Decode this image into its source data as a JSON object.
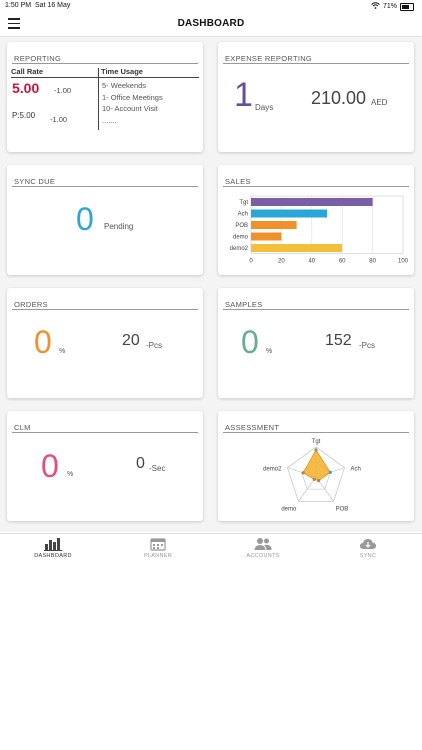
{
  "status_bar": {
    "time": "1:50 PM",
    "date": "Sat 16 May",
    "battery": "71%",
    "battery_level": 0.71
  },
  "header": {
    "title": "DASHBOARD"
  },
  "reporting": {
    "title": "REPORTING",
    "col_call_rate": "Call Rate",
    "col_time_usage": "Time Usage",
    "call_rate_value": "5.00",
    "call_rate_delta": "-1.00",
    "p_value": "P:5.00",
    "p_delta": "-1.00",
    "time_usage_items": [
      "5- Weekends",
      "1- Office Meetings",
      "10- Account Visit",
      "......."
    ]
  },
  "expense": {
    "title": "EXPENSE REPORTING",
    "days_value": "1",
    "days_label": "Days",
    "amount": "210.00",
    "currency": "AED"
  },
  "sync_due": {
    "title": "SYNC DUE",
    "value": "0",
    "label": "Pending"
  },
  "sales": {
    "title": "SALES"
  },
  "orders": {
    "title": "ORDERS",
    "percent": "0",
    "percent_sign": "%",
    "qty": "20",
    "qty_unit": "-Pcs"
  },
  "samples": {
    "title": "SAMPLES",
    "percent": "0",
    "percent_sign": "%",
    "qty": "152",
    "qty_unit": "-Pcs"
  },
  "clm": {
    "title": "CLM",
    "percent": "0",
    "percent_sign": "%",
    "seconds": "0",
    "seconds_unit": "-Sec"
  },
  "assessment": {
    "title": "ASSESSMENT"
  },
  "chart_data": [
    {
      "type": "bar",
      "orientation": "horizontal",
      "categories": [
        "Tgt",
        "Ach",
        "POB",
        "demo",
        "demo2"
      ],
      "values": [
        80,
        50,
        30,
        20,
        60
      ],
      "colors": [
        "#7b5ea7",
        "#2aa7d8",
        "#f0922b",
        "#f0922b",
        "#f4bf3a"
      ],
      "xlim": [
        0,
        100
      ],
      "xticks": [
        "0",
        "20",
        "40",
        "60",
        "80",
        "100"
      ],
      "grid": true
    },
    {
      "type": "radar",
      "categories": [
        "Tgt",
        "Ach",
        "POB",
        "demo",
        "demo2"
      ],
      "values": [
        0.9,
        0.5,
        0.15,
        0.1,
        0.45
      ],
      "fill_color": "#f4b02a"
    }
  ],
  "tabs": [
    {
      "label": "DASHBOARD",
      "icon": "bar-chart-icon",
      "active": true
    },
    {
      "label": "PLANNER",
      "icon": "calendar-icon",
      "active": false
    },
    {
      "label": "ACCOUNTS",
      "icon": "people-icon",
      "active": false
    },
    {
      "label": "SYNC",
      "icon": "cloud-sync-icon",
      "active": false
    }
  ]
}
